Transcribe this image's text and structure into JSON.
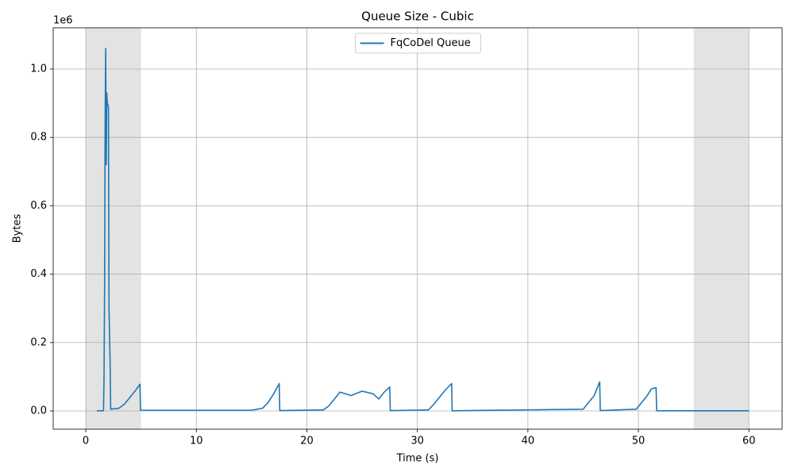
{
  "chart_data": {
    "type": "line",
    "title": "Queue Size - Cubic",
    "x_label": "Time (s)",
    "y_label": "Bytes",
    "y_offset_label": "1e6",
    "x": [
      1.0,
      1.6,
      1.65,
      1.7,
      1.75,
      1.8,
      1.85,
      1.9,
      1.95,
      2.05,
      2.1,
      2.2,
      2.25,
      3.0,
      3.5,
      4.0,
      4.5,
      4.9,
      4.95,
      15.0,
      16.0,
      16.5,
      17.0,
      17.5,
      17.55,
      21.5,
      22.0,
      22.5,
      23.0,
      24.0,
      25.0,
      26.0,
      26.5,
      27.0,
      27.5,
      27.55,
      31.0,
      31.5,
      32.0,
      32.5,
      33.1,
      33.15,
      45.0,
      45.5,
      46.0,
      46.5,
      46.55,
      49.8,
      50.3,
      50.8,
      51.2,
      51.6,
      51.65,
      60.0
    ],
    "series": [
      {
        "name": "FqCoDel Queue",
        "color": "#1f77b4",
        "values": [
          500,
          500,
          100000,
          360000,
          850000,
          1060000,
          720000,
          930000,
          900000,
          890000,
          300000,
          140000,
          5000,
          8000,
          20000,
          40000,
          60000,
          78000,
          2000,
          2000,
          8000,
          25000,
          50000,
          80000,
          1000,
          3000,
          15000,
          35000,
          55000,
          45000,
          58000,
          50000,
          35000,
          55000,
          70000,
          1000,
          3000,
          20000,
          40000,
          60000,
          80000,
          500,
          5000,
          25000,
          45000,
          85000,
          1000,
          5000,
          25000,
          45000,
          65000,
          68000,
          500,
          500
        ]
      }
    ],
    "shaded_regions": [
      [
        0,
        5
      ],
      [
        55,
        60
      ]
    ],
    "xlim": [
      -2.95,
      63.0
    ],
    "ylim": [
      -53400,
      1120600
    ],
    "xticks": [
      0,
      10,
      20,
      30,
      40,
      50,
      60
    ],
    "yticks": [
      {
        "value": 0,
        "label": "0.0"
      },
      {
        "value": 200000,
        "label": "0.2"
      },
      {
        "value": 400000,
        "label": "0.4"
      },
      {
        "value": 600000,
        "label": "0.6"
      },
      {
        "value": 800000,
        "label": "0.8"
      },
      {
        "value": 1000000,
        "label": "1.0"
      }
    ],
    "grid": true,
    "legend": "upper center"
  }
}
